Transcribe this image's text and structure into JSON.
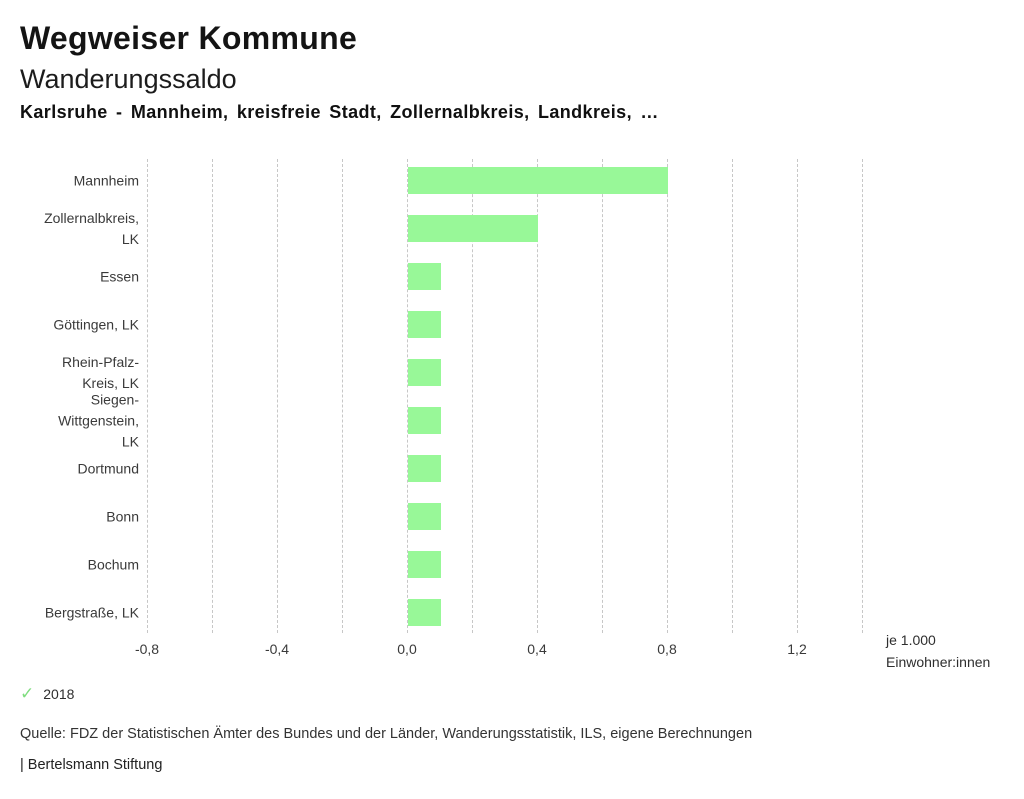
{
  "header": {
    "title": "Wegweiser Kommune",
    "subtitle": "Wanderungssaldo",
    "filter_line": "Karlsruhe - Mannheim, kreisfreie Stadt, Zollernalbkreis, Landkreis, …"
  },
  "chart_data": {
    "type": "bar",
    "orientation": "horizontal",
    "title": "Wanderungssaldo",
    "categories": [
      "Mannheim",
      "Zollernalbkreis, LK",
      "Essen",
      "Göttingen, LK",
      "Rhein-Pfalz-Kreis, LK",
      "Siegen-Wittgenstein, LK",
      "Dortmund",
      "Bonn",
      "Bochum",
      "Bergstraße, LK"
    ],
    "category_display": [
      "Mannheim",
      "Zollernalbkreis,\nLK",
      "Essen",
      "Göttingen, LK",
      "Rhein-Pfalz-\nKreis, LK",
      "Siegen-\nWittgenstein,\nLK",
      "Dortmund",
      "Bonn",
      "Bochum",
      "Bergstraße, LK"
    ],
    "series": [
      {
        "name": "2018",
        "values": [
          0.8,
          0.4,
          0.1,
          0.1,
          0.1,
          0.1,
          0.1,
          0.1,
          0.1,
          0.1
        ]
      }
    ],
    "xlabel_lines": [
      "je 1.000",
      "Einwohner:innen"
    ],
    "xlim": [
      -0.8,
      1.4
    ],
    "gridline_step": 0.2,
    "grid": "vertical-dashed",
    "x_ticks": [
      {
        "value": -0.8,
        "label": "-0,8"
      },
      {
        "value": -0.4,
        "label": "-0,4"
      },
      {
        "value": 0.0,
        "label": "0,0"
      },
      {
        "value": 0.4,
        "label": "0,4"
      },
      {
        "value": 0.8,
        "label": "0,8"
      },
      {
        "value": 1.2,
        "label": "1,2"
      }
    ],
    "bar_color": "#98f898",
    "gridline_color": "#c7c7c7",
    "legend_position": "bottom-left"
  },
  "legend": {
    "check_icon": "✓",
    "check_color": "#7fdd7f",
    "year": "2018"
  },
  "footer": {
    "source": "Quelle: FDZ der Statistischen Ämter des Bundes und der Länder, Wanderungsstatistik, ILS, eigene Berechnungen",
    "branding": "| Bertelsmann Stiftung"
  }
}
